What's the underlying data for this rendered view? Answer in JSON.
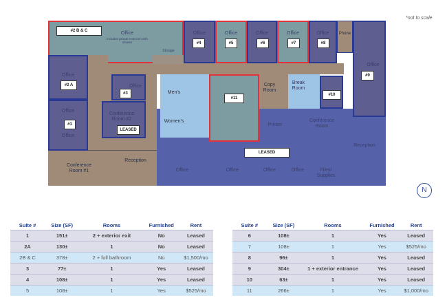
{
  "note": "*not to scale",
  "compass": "N",
  "plan": {
    "office": "Office",
    "office_2bc_sub": "Includes private restroom with shower",
    "storage": "Storage",
    "phone": "Phone",
    "mens": "Men's",
    "womens": "Women's",
    "copy_room": "Copy Room",
    "break_room": "Break Room",
    "printer": "Printer",
    "conference_room": "Conference Room",
    "conference_room_1": "Conference Room #1",
    "conference_room_2": "Conference Room #2",
    "reception": "Reception",
    "files_supplies": "Files/ Supplies",
    "leased": "LEASED",
    "tags": {
      "s2bc": "#2 B & C",
      "s2a": "#2 A",
      "s1": "#1",
      "s3": "#3",
      "s4": "#4",
      "s5": "#5",
      "s6": "#6",
      "s7": "#7",
      "s8": "#8",
      "s9": "#9",
      "s10": "#10",
      "s11": "#11"
    }
  },
  "colors": {
    "leased_office": "#5f5e90",
    "available_office": "#7d9ca2",
    "available_border": "#e2333c",
    "leased_border": "#2a3a94",
    "common": "#a08b79",
    "restroom": "#9fc5e6",
    "leased_area": "#5561a8"
  },
  "tables": {
    "headers": [
      "Suite #",
      "Size (SF)",
      "Rooms",
      "Furnished",
      "Rent"
    ],
    "left": [
      {
        "status": "leased",
        "cells": [
          "1",
          "151±",
          "2 + exterior exit",
          "No",
          "Leased"
        ]
      },
      {
        "status": "leased",
        "cells": [
          "2A",
          "130±",
          "1",
          "No",
          "Leased"
        ]
      },
      {
        "status": "avail",
        "cells": [
          "2B & C",
          "378±",
          "2 + full bathroom",
          "No",
          "$1,500/mo"
        ]
      },
      {
        "status": "leased",
        "cells": [
          "3",
          "77±",
          "1",
          "Yes",
          "Leased"
        ]
      },
      {
        "status": "leased",
        "cells": [
          "4",
          "108±",
          "1",
          "Yes",
          "Leased"
        ]
      },
      {
        "status": "avail",
        "cells": [
          "5",
          "108±",
          "1",
          "Yes",
          "$525/mo"
        ]
      }
    ],
    "right": [
      {
        "status": "leased",
        "cells": [
          "6",
          "108±",
          "1",
          "Yes",
          "Leased"
        ]
      },
      {
        "status": "avail",
        "cells": [
          "7",
          "108±",
          "1",
          "Yes",
          "$525/mo"
        ]
      },
      {
        "status": "leased",
        "cells": [
          "8",
          "96±",
          "1",
          "Yes",
          "Leased"
        ]
      },
      {
        "status": "leased",
        "cells": [
          "9",
          "304±",
          "1 + exterior entrance",
          "Yes",
          "Leased"
        ]
      },
      {
        "status": "leased",
        "cells": [
          "10",
          "63±",
          "1",
          "Yes",
          "Leased"
        ]
      },
      {
        "status": "avail",
        "cells": [
          "11",
          "266±",
          "1",
          "Yes",
          "$1,000/mo"
        ]
      }
    ]
  }
}
